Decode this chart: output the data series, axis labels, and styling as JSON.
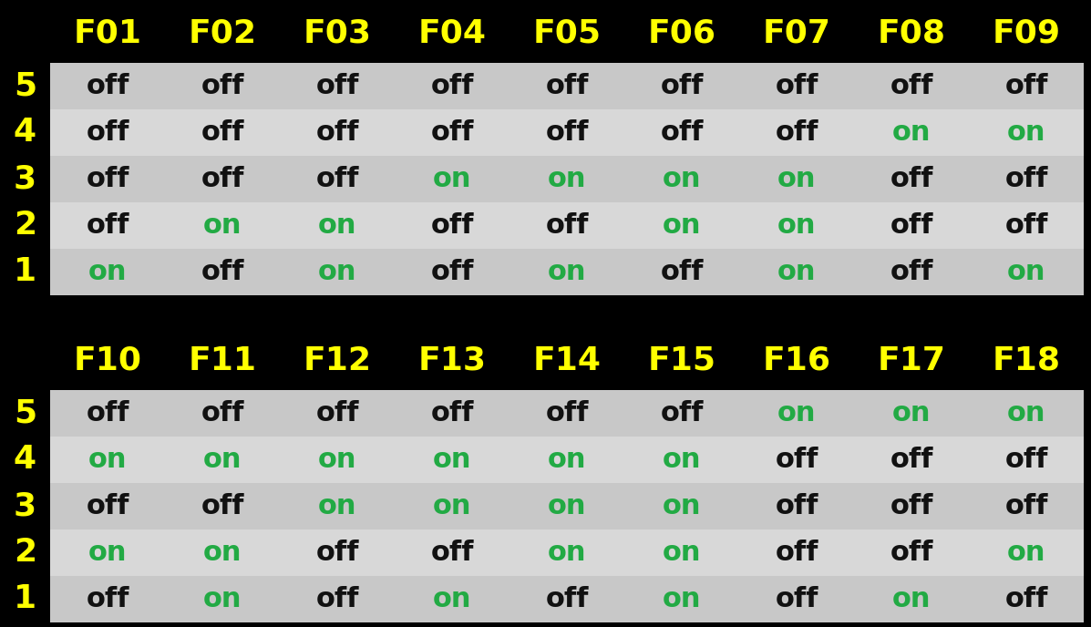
{
  "background_color": "#000000",
  "row_colors": [
    "#c8c8c8",
    "#d8d8d8"
  ],
  "header_text_color": "#ffff00",
  "on_color": "#22aa44",
  "off_color": "#111111",
  "row_label_color": "#ffff00",
  "table1": {
    "columns": [
      "F01",
      "F02",
      "F03",
      "F04",
      "F05",
      "F06",
      "F07",
      "F08",
      "F09"
    ],
    "rows": [
      5,
      4,
      3,
      2,
      1
    ],
    "data": [
      [
        "off",
        "off",
        "off",
        "off",
        "off",
        "off",
        "off",
        "off",
        "off"
      ],
      [
        "off",
        "off",
        "off",
        "off",
        "off",
        "off",
        "off",
        "on",
        "on"
      ],
      [
        "off",
        "off",
        "off",
        "on",
        "on",
        "on",
        "on",
        "off",
        "off"
      ],
      [
        "off",
        "on",
        "on",
        "off",
        "off",
        "on",
        "on",
        "off",
        "off"
      ],
      [
        "on",
        "off",
        "on",
        "off",
        "on",
        "off",
        "on",
        "off",
        "on"
      ]
    ]
  },
  "table2": {
    "columns": [
      "F10",
      "F11",
      "F12",
      "F13",
      "F14",
      "F15",
      "F16",
      "F17",
      "F18"
    ],
    "rows": [
      5,
      4,
      3,
      2,
      1
    ],
    "data": [
      [
        "off",
        "off",
        "off",
        "off",
        "off",
        "off",
        "on",
        "on",
        "on"
      ],
      [
        "on",
        "on",
        "on",
        "on",
        "on",
        "on",
        "off",
        "off",
        "off"
      ],
      [
        "off",
        "off",
        "on",
        "on",
        "on",
        "on",
        "off",
        "off",
        "off"
      ],
      [
        "on",
        "on",
        "off",
        "off",
        "on",
        "on",
        "off",
        "off",
        "on"
      ],
      [
        "off",
        "on",
        "off",
        "on",
        "off",
        "on",
        "off",
        "on",
        "off"
      ]
    ]
  },
  "header_fontsize": 26,
  "row_label_fontsize": 26,
  "cell_fontsize": 22
}
